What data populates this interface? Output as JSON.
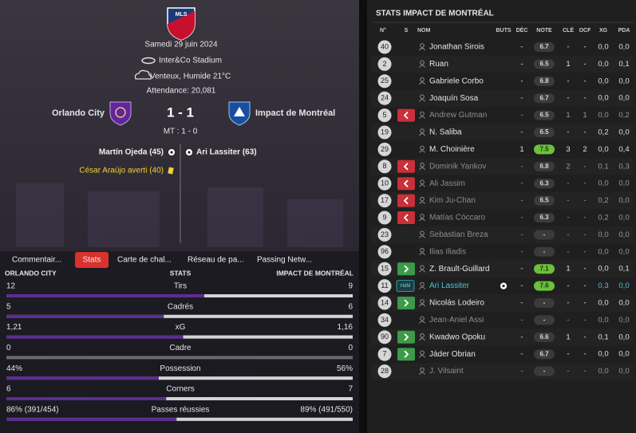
{
  "match": {
    "logo": "MLS",
    "date": "Samedi 29 juin 2024",
    "stadium": "Inter&Co Stadium",
    "weather": "Venteux, Humide 21°C",
    "attendance": "Attendance: 20,081",
    "home_team": "Orlando City",
    "away_team": "Impact de Montréal",
    "score": "1 - 1",
    "half_time": "MT : 1 - 0",
    "events": [
      {
        "text": "Martín Ojeda (45)",
        "side": "home",
        "kind": "goal"
      },
      {
        "text": "Ari Lassiter (63)",
        "side": "away",
        "kind": "goal"
      },
      {
        "text": "César Araújo averti (40)",
        "side": "home",
        "kind": "yellow"
      }
    ]
  },
  "tabs": {
    "items": [
      "Commentair...",
      "Stats",
      "Carte de chal...",
      "Réseau de pa...",
      "Passing Netw..."
    ],
    "active": 1
  },
  "team_stats": {
    "headers": [
      "ORLANDO CITY",
      "STATS",
      "IMPACT DE MONTRÉAL"
    ],
    "home_color": "#5c2d91",
    "rows": [
      {
        "label": "Tirs",
        "home": 12,
        "away": 9
      },
      {
        "label": "Cadrés",
        "home": 5,
        "away": 6
      },
      {
        "label": "xG",
        "home": {
          "value": 1.21,
          "label": "1,21"
        },
        "away": {
          "value": 1.16,
          "label": "1,16"
        }
      },
      {
        "label": "Cadre",
        "home": 0,
        "away": 0
      },
      {
        "label": "Possession",
        "home": {
          "value": 44,
          "label": "44%"
        },
        "away": {
          "value": 56,
          "label": "56%"
        }
      },
      {
        "label": "Corners",
        "home": 6,
        "away": 7
      },
      {
        "label": "Passes réussies",
        "home": {
          "value": 86,
          "label": "86% (391/454)"
        },
        "away": {
          "value": 89,
          "label": "89% (491/550)"
        }
      }
    ]
  },
  "player_stats": {
    "title": "STATS IMPACT DE MONTRÉAL",
    "columns": [
      "N°",
      "S",
      "NOM",
      "BUTS",
      "DÉC",
      "NOTE",
      "CLÉ",
      "OCF",
      "XG",
      "PDA"
    ],
    "rows": [
      {
        "number": "40",
        "name": "Jonathan Sirois",
        "dec": "-",
        "note": "6.7",
        "cle": "-",
        "ocf": "-",
        "xg": "0,0",
        "pda": "0,0"
      },
      {
        "number": "2",
        "name": "Ruan",
        "dec": "-",
        "note": "6.5",
        "cle": "1",
        "ocf": "-",
        "xg": "0,0",
        "pda": "0,1"
      },
      {
        "number": "25",
        "name": "Gabriele Corbo",
        "dec": "-",
        "note": "6.8",
        "cle": "-",
        "ocf": "-",
        "xg": "0,0",
        "pda": "0,0"
      },
      {
        "number": "24",
        "name": "Joaquín Sosa",
        "dec": "-",
        "note": "6.7",
        "cle": "-",
        "ocf": "-",
        "xg": "0,0",
        "pda": "0,0"
      },
      {
        "number": "5",
        "sub": "out",
        "dim": true,
        "name": "Andrew Gutman",
        "dec": "-",
        "note": "6.5",
        "cle": "1",
        "ocf": "1",
        "xg": "0,0",
        "pda": "0,2"
      },
      {
        "number": "19",
        "name": "N. Saliba",
        "dec": "-",
        "note": "6.5",
        "cle": "-",
        "ocf": "-",
        "xg": "0,2",
        "pda": "0,0"
      },
      {
        "number": "29",
        "name": "M. Choinière",
        "dec": "1",
        "note": "7.5",
        "cle": "3",
        "ocf": "2",
        "xg": "0,0",
        "pda": "0,4"
      },
      {
        "number": "8",
        "sub": "out",
        "dim": true,
        "name": "Dominik Yankov",
        "dec": "-",
        "note": "6.8",
        "cle": "2",
        "ocf": "-",
        "xg": "0,1",
        "pda": "0,3"
      },
      {
        "number": "10",
        "sub": "out",
        "dim": true,
        "name": "Ali Jassim",
        "dec": "-",
        "note": "6.3",
        "cle": "-",
        "ocf": "-",
        "xg": "0,0",
        "pda": "0,0"
      },
      {
        "number": "17",
        "sub": "out",
        "dim": true,
        "name": "Kim Ju-Chan",
        "dec": "-",
        "note": "6.5",
        "cle": "-",
        "ocf": "-",
        "xg": "0,2",
        "pda": "0,0"
      },
      {
        "number": "9",
        "sub": "out",
        "dim": true,
        "name": "Matías Cóccaro",
        "dec": "-",
        "note": "6.3",
        "cle": "-",
        "ocf": "-",
        "xg": "0,2",
        "pda": "0,0"
      },
      {
        "number": "23",
        "dim": true,
        "name": "Sebastian Breza",
        "dec": "-",
        "note": "-",
        "cle": "-",
        "ocf": "-",
        "xg": "0,0",
        "pda": "0,0"
      },
      {
        "number": "96",
        "dim": true,
        "name": "Ilias Iliadis",
        "dec": "-",
        "note": "-",
        "cle": "-",
        "ocf": "-",
        "xg": "0,0",
        "pda": "0,0"
      },
      {
        "number": "15",
        "sub": "in",
        "name": "Z. Brault-Guillard",
        "dec": "-",
        "note": "7.1",
        "cle": "1",
        "ocf": "-",
        "xg": "0,0",
        "pda": "0,1"
      },
      {
        "number": "11",
        "badge": "HdM",
        "highlight": true,
        "goal": true,
        "name": "Ari Lassiter",
        "dec": "-",
        "note": "7.6",
        "cle": "-",
        "ocf": "-",
        "xg": "0,3",
        "pda": "0,0"
      },
      {
        "number": "14",
        "sub": "in",
        "name": "Nicolás Lodeiro",
        "dec": "-",
        "note": "-",
        "cle": "-",
        "ocf": "-",
        "xg": "0,0",
        "pda": "0,0"
      },
      {
        "number": "34",
        "dim": true,
        "name": "Jean-Aniel Assi",
        "dec": "-",
        "note": "-",
        "cle": "-",
        "ocf": "-",
        "xg": "0,0",
        "pda": "0,0"
      },
      {
        "number": "90",
        "sub": "in",
        "name": "Kwadwo Opoku",
        "dec": "-",
        "note": "6.6",
        "cle": "1",
        "ocf": "-",
        "xg": "0,1",
        "pda": "0,0"
      },
      {
        "number": "7",
        "sub": "in",
        "name": "Jáder Obrian",
        "dec": "-",
        "note": "6.7",
        "cle": "-",
        "ocf": "-",
        "xg": "0,0",
        "pda": "0,0"
      },
      {
        "number": "28",
        "dim": true,
        "name": "J. Vilsaint",
        "dec": "-",
        "note": "-",
        "cle": "-",
        "ocf": "-",
        "xg": "0,0",
        "pda": "0,0"
      }
    ]
  }
}
